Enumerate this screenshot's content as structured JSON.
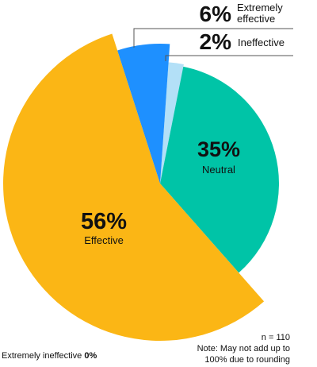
{
  "chart_data": {
    "type": "pie",
    "slices": [
      {
        "label": "Neutral",
        "value": 35,
        "value_label": "35%",
        "color": "#00c4a7"
      },
      {
        "label": "Effective",
        "value": 56,
        "value_label": "56%",
        "color": "#fbb615"
      },
      {
        "label": "Extremely effective",
        "value": 6,
        "value_label": "6%",
        "color": "#1e90ff"
      },
      {
        "label": "Ineffective",
        "value": 2,
        "value_label": "2%",
        "color": "#b3e0f7"
      },
      {
        "label": "Extremely ineffective",
        "value": 0,
        "value_label": "0%",
        "color": "#ffffff"
      }
    ],
    "callouts": {
      "extremely_effective": {
        "pct": "6%",
        "line1": "Extremely",
        "line2": "effective"
      },
      "ineffective": {
        "pct": "2%",
        "label": "Ineffective"
      }
    },
    "zero_note": {
      "label": "Extremely ineffective",
      "pct": "0%"
    },
    "notes": {
      "n": "n = 110",
      "line1": "Note: May not add up to",
      "line2": "100% due to rounding"
    }
  }
}
